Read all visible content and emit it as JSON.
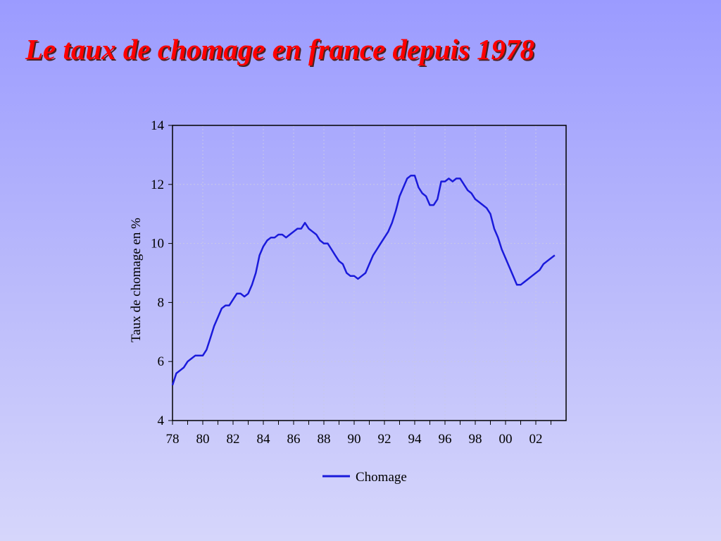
{
  "title": "Le taux de chomage en france depuis 1978",
  "chart_data": {
    "type": "line",
    "ylabel": "Taux de chomage en %",
    "xlabel": "",
    "xlim": [
      1978,
      2004
    ],
    "ylim": [
      4,
      14
    ],
    "yticks": [
      4,
      6,
      8,
      10,
      12,
      14
    ],
    "xticks": [
      "78",
      "80",
      "82",
      "84",
      "86",
      "88",
      "90",
      "92",
      "94",
      "96",
      "98",
      "00",
      "02"
    ],
    "grid": true,
    "legend": "bottom-center",
    "series": [
      {
        "name": "Chomage",
        "color": "#1a1adb",
        "x": [
          1978.0,
          1978.25,
          1978.5,
          1978.75,
          1979.0,
          1979.25,
          1979.5,
          1979.75,
          1980.0,
          1980.25,
          1980.5,
          1980.75,
          1981.0,
          1981.25,
          1981.5,
          1981.75,
          1982.0,
          1982.25,
          1982.5,
          1982.75,
          1983.0,
          1983.25,
          1983.5,
          1983.75,
          1984.0,
          1984.25,
          1984.5,
          1984.75,
          1985.0,
          1985.25,
          1985.5,
          1985.75,
          1986.0,
          1986.25,
          1986.5,
          1986.75,
          1987.0,
          1987.25,
          1987.5,
          1987.75,
          1988.0,
          1988.25,
          1988.5,
          1988.75,
          1989.0,
          1989.25,
          1989.5,
          1989.75,
          1990.0,
          1990.25,
          1990.5,
          1990.75,
          1991.0,
          1991.25,
          1991.5,
          1991.75,
          1992.0,
          1992.25,
          1992.5,
          1992.75,
          1993.0,
          1993.25,
          1993.5,
          1993.75,
          1994.0,
          1994.25,
          1994.5,
          1994.75,
          1995.0,
          1995.25,
          1995.5,
          1995.75,
          1996.0,
          1996.25,
          1996.5,
          1996.75,
          1997.0,
          1997.25,
          1997.5,
          1997.75,
          1998.0,
          1998.25,
          1998.5,
          1998.75,
          1999.0,
          1999.25,
          1999.5,
          1999.75,
          2000.0,
          2000.25,
          2000.5,
          2000.75,
          2001.0,
          2001.25,
          2001.5,
          2001.75,
          2002.0,
          2002.25,
          2002.5,
          2002.75,
          2003.0,
          2003.25
        ],
        "values": [
          5.2,
          5.6,
          5.7,
          5.8,
          6.0,
          6.1,
          6.2,
          6.2,
          6.2,
          6.4,
          6.8,
          7.2,
          7.5,
          7.8,
          7.9,
          7.9,
          8.1,
          8.3,
          8.3,
          8.2,
          8.3,
          8.6,
          9.0,
          9.6,
          9.9,
          10.1,
          10.2,
          10.2,
          10.3,
          10.3,
          10.2,
          10.3,
          10.4,
          10.5,
          10.5,
          10.7,
          10.5,
          10.4,
          10.3,
          10.1,
          10.0,
          10.0,
          9.8,
          9.6,
          9.4,
          9.3,
          9.0,
          8.9,
          8.9,
          8.8,
          8.9,
          9.0,
          9.3,
          9.6,
          9.8,
          10.0,
          10.2,
          10.4,
          10.7,
          11.1,
          11.6,
          11.9,
          12.2,
          12.3,
          12.3,
          11.9,
          11.7,
          11.6,
          11.3,
          11.3,
          11.5,
          12.1,
          12.1,
          12.2,
          12.1,
          12.2,
          12.2,
          12.0,
          11.8,
          11.7,
          11.5,
          11.4,
          11.3,
          11.2,
          11.0,
          10.5,
          10.2,
          9.8,
          9.5,
          9.2,
          8.9,
          8.6,
          8.6,
          8.7,
          8.8,
          8.9,
          9.0,
          9.1,
          9.3,
          9.4,
          9.5,
          9.6
        ]
      }
    ]
  }
}
